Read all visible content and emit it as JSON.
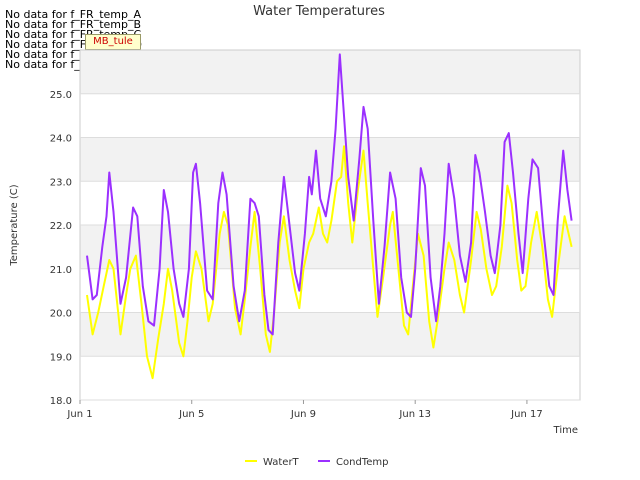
{
  "no_data_notes": [
    "No data for f_FR_temp_A",
    "No data for f_FR_temp_B",
    "No data for f_FR_temp_C",
    "No data for f_FR_temp_D",
    "No data for f_Temp_A",
    "No data for f_WaterTemp_CTD"
  ],
  "tag_label": "MB_tule",
  "chart_data": {
    "type": "line",
    "title": "Water Temperatures",
    "xlabel": "Time",
    "ylabel": "Temperature (C)",
    "xlim": [
      0,
      17.9
    ],
    "ylim": [
      18.0,
      26.0
    ],
    "x_ticks": [
      {
        "x": 0,
        "label": "Jun 1"
      },
      {
        "x": 4,
        "label": "Jun 5"
      },
      {
        "x": 8,
        "label": "Jun 9"
      },
      {
        "x": 12,
        "label": "Jun 13"
      },
      {
        "x": 16,
        "label": "Jun 17"
      }
    ],
    "y_ticks": [
      "18.0",
      "19.0",
      "20.0",
      "21.0",
      "22.0",
      "23.0",
      "24.0",
      "25.0"
    ],
    "y_tick_values": [
      18,
      19,
      20,
      21,
      22,
      23,
      24,
      25
    ],
    "grid": true,
    "legend_position": "bottom",
    "series": [
      {
        "name": "WaterT",
        "color": "#ffff00",
        "points": [
          [
            0.25,
            20.4
          ],
          [
            0.45,
            19.5
          ],
          [
            0.65,
            20.0
          ],
          [
            0.85,
            20.6
          ],
          [
            1.05,
            21.2
          ],
          [
            1.2,
            21.0
          ],
          [
            1.45,
            19.5
          ],
          [
            1.65,
            20.4
          ],
          [
            1.8,
            21.0
          ],
          [
            2.0,
            21.3
          ],
          [
            2.2,
            20.2
          ],
          [
            2.4,
            19.0
          ],
          [
            2.6,
            18.5
          ],
          [
            2.8,
            19.4
          ],
          [
            3.0,
            20.2
          ],
          [
            3.15,
            21.0
          ],
          [
            3.3,
            20.5
          ],
          [
            3.55,
            19.3
          ],
          [
            3.7,
            19.0
          ],
          [
            3.85,
            19.8
          ],
          [
            4.0,
            20.8
          ],
          [
            4.15,
            21.4
          ],
          [
            4.35,
            21.0
          ],
          [
            4.6,
            19.8
          ],
          [
            4.75,
            20.2
          ],
          [
            5.0,
            21.8
          ],
          [
            5.15,
            22.3
          ],
          [
            5.3,
            22.0
          ],
          [
            5.55,
            20.1
          ],
          [
            5.75,
            19.5
          ],
          [
            5.9,
            20.3
          ],
          [
            6.1,
            21.5
          ],
          [
            6.25,
            22.3
          ],
          [
            6.45,
            21.0
          ],
          [
            6.65,
            19.5
          ],
          [
            6.8,
            19.1
          ],
          [
            6.95,
            20.0
          ],
          [
            7.15,
            21.6
          ],
          [
            7.3,
            22.2
          ],
          [
            7.5,
            21.2
          ],
          [
            7.7,
            20.5
          ],
          [
            7.85,
            20.1
          ],
          [
            8.0,
            21.0
          ],
          [
            8.2,
            21.6
          ],
          [
            8.35,
            21.8
          ],
          [
            8.55,
            22.4
          ],
          [
            8.7,
            21.8
          ],
          [
            8.85,
            21.6
          ],
          [
            9.0,
            22.1
          ],
          [
            9.2,
            23.0
          ],
          [
            9.35,
            23.1
          ],
          [
            9.45,
            23.8
          ],
          [
            9.6,
            22.5
          ],
          [
            9.75,
            21.6
          ],
          [
            9.95,
            22.8
          ],
          [
            10.15,
            23.7
          ],
          [
            10.3,
            22.5
          ],
          [
            10.5,
            21.0
          ],
          [
            10.65,
            19.9
          ],
          [
            10.85,
            20.8
          ],
          [
            11.1,
            22.0
          ],
          [
            11.2,
            22.3
          ],
          [
            11.4,
            21.0
          ],
          [
            11.6,
            19.7
          ],
          [
            11.75,
            19.5
          ],
          [
            11.9,
            20.5
          ],
          [
            12.1,
            21.8
          ],
          [
            12.3,
            21.3
          ],
          [
            12.5,
            19.8
          ],
          [
            12.65,
            19.2
          ],
          [
            12.8,
            19.8
          ],
          [
            13.05,
            21.0
          ],
          [
            13.2,
            21.6
          ],
          [
            13.4,
            21.2
          ],
          [
            13.6,
            20.4
          ],
          [
            13.75,
            20.0
          ],
          [
            14.0,
            21.2
          ],
          [
            14.2,
            22.3
          ],
          [
            14.35,
            21.9
          ],
          [
            14.55,
            21.0
          ],
          [
            14.75,
            20.4
          ],
          [
            14.9,
            20.6
          ],
          [
            15.1,
            21.5
          ],
          [
            15.3,
            22.9
          ],
          [
            15.45,
            22.5
          ],
          [
            15.65,
            21.2
          ],
          [
            15.8,
            20.5
          ],
          [
            15.95,
            20.6
          ],
          [
            16.15,
            21.6
          ],
          [
            16.35,
            22.3
          ],
          [
            16.55,
            21.5
          ],
          [
            16.75,
            20.3
          ],
          [
            16.9,
            19.9
          ],
          [
            17.1,
            21.0
          ],
          [
            17.35,
            22.2
          ],
          [
            17.6,
            21.5
          ]
        ]
      },
      {
        "name": "CondTemp",
        "color": "#9b30ff",
        "points": [
          [
            0.25,
            21.3
          ],
          [
            0.45,
            20.3
          ],
          [
            0.6,
            20.4
          ],
          [
            0.8,
            21.5
          ],
          [
            0.95,
            22.2
          ],
          [
            1.05,
            23.2
          ],
          [
            1.2,
            22.3
          ],
          [
            1.45,
            20.2
          ],
          [
            1.65,
            20.8
          ],
          [
            1.9,
            22.4
          ],
          [
            2.05,
            22.2
          ],
          [
            2.25,
            20.6
          ],
          [
            2.45,
            19.8
          ],
          [
            2.65,
            19.7
          ],
          [
            2.85,
            21.0
          ],
          [
            3.0,
            22.8
          ],
          [
            3.15,
            22.3
          ],
          [
            3.35,
            21.0
          ],
          [
            3.55,
            20.2
          ],
          [
            3.7,
            19.9
          ],
          [
            3.9,
            21.0
          ],
          [
            4.05,
            23.2
          ],
          [
            4.15,
            23.4
          ],
          [
            4.3,
            22.5
          ],
          [
            4.55,
            20.5
          ],
          [
            4.75,
            20.3
          ],
          [
            4.95,
            22.5
          ],
          [
            5.1,
            23.2
          ],
          [
            5.25,
            22.7
          ],
          [
            5.5,
            20.6
          ],
          [
            5.7,
            19.8
          ],
          [
            5.9,
            20.5
          ],
          [
            6.1,
            22.6
          ],
          [
            6.25,
            22.5
          ],
          [
            6.4,
            22.2
          ],
          [
            6.6,
            20.4
          ],
          [
            6.75,
            19.6
          ],
          [
            6.9,
            19.5
          ],
          [
            7.1,
            21.6
          ],
          [
            7.3,
            23.1
          ],
          [
            7.5,
            22.0
          ],
          [
            7.7,
            20.9
          ],
          [
            7.85,
            20.5
          ],
          [
            8.05,
            21.8
          ],
          [
            8.2,
            23.1
          ],
          [
            8.3,
            22.7
          ],
          [
            8.45,
            23.7
          ],
          [
            8.6,
            22.6
          ],
          [
            8.8,
            22.2
          ],
          [
            9.0,
            23.0
          ],
          [
            9.15,
            24.2
          ],
          [
            9.3,
            25.9
          ],
          [
            9.45,
            24.5
          ],
          [
            9.6,
            23.1
          ],
          [
            9.8,
            22.1
          ],
          [
            10.0,
            23.5
          ],
          [
            10.15,
            24.7
          ],
          [
            10.3,
            24.2
          ],
          [
            10.5,
            22.1
          ],
          [
            10.7,
            20.2
          ],
          [
            10.9,
            21.5
          ],
          [
            11.1,
            23.2
          ],
          [
            11.3,
            22.6
          ],
          [
            11.5,
            20.8
          ],
          [
            11.7,
            20.0
          ],
          [
            11.85,
            19.9
          ],
          [
            12.0,
            21.0
          ],
          [
            12.2,
            23.3
          ],
          [
            12.35,
            22.9
          ],
          [
            12.55,
            20.8
          ],
          [
            12.75,
            19.8
          ],
          [
            12.9,
            20.6
          ],
          [
            13.05,
            21.8
          ],
          [
            13.2,
            23.4
          ],
          [
            13.4,
            22.6
          ],
          [
            13.6,
            21.3
          ],
          [
            13.8,
            20.7
          ],
          [
            14.0,
            21.6
          ],
          [
            14.15,
            23.6
          ],
          [
            14.3,
            23.2
          ],
          [
            14.5,
            22.3
          ],
          [
            14.7,
            21.3
          ],
          [
            14.85,
            20.9
          ],
          [
            15.05,
            22.0
          ],
          [
            15.2,
            23.9
          ],
          [
            15.35,
            24.1
          ],
          [
            15.5,
            23.2
          ],
          [
            15.7,
            21.8
          ],
          [
            15.85,
            20.9
          ],
          [
            16.05,
            22.6
          ],
          [
            16.2,
            23.5
          ],
          [
            16.4,
            23.3
          ],
          [
            16.6,
            21.8
          ],
          [
            16.8,
            20.6
          ],
          [
            16.95,
            20.4
          ],
          [
            17.1,
            22.1
          ],
          [
            17.3,
            23.7
          ],
          [
            17.45,
            22.8
          ],
          [
            17.6,
            22.1
          ]
        ]
      }
    ]
  }
}
